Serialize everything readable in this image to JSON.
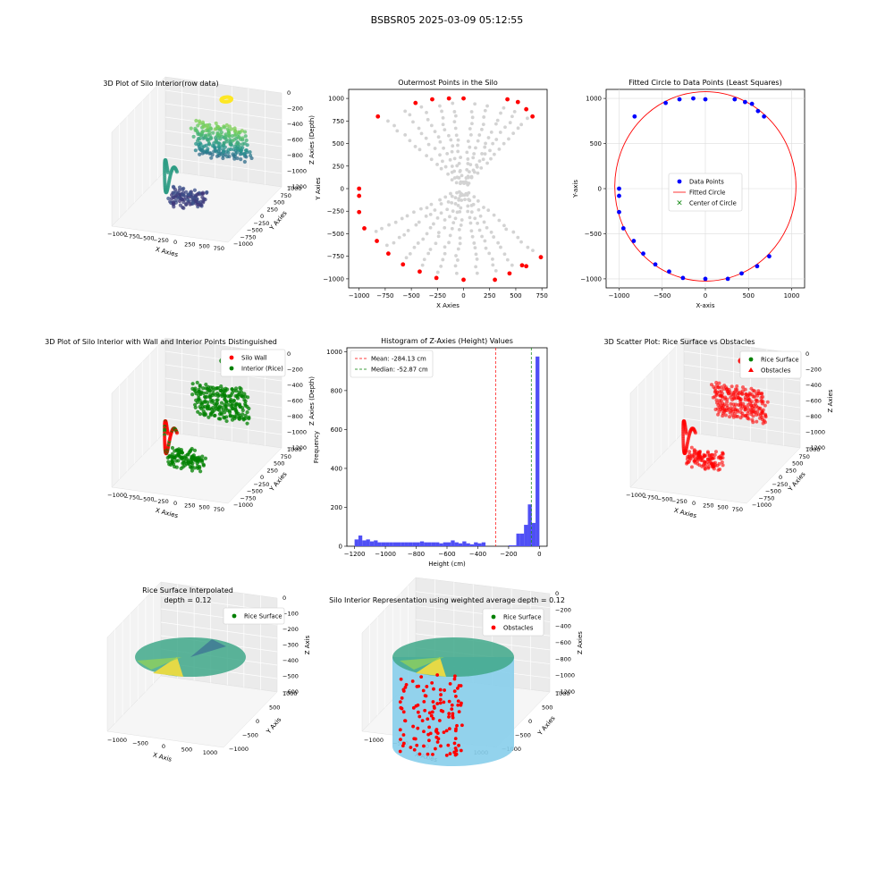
{
  "suptitle": "BSBSR05 2025-03-09 05:12:55",
  "colors": {
    "red": "#ff0000",
    "green": "#008000",
    "blue": "#0000ff",
    "gray": "#d3d3d3",
    "hist_bar": "#4f4ff5",
    "cyl": "#87ceeb",
    "pane": "#f2f2f2"
  },
  "chart_data": [
    {
      "type": "scatter3d",
      "id": "p1",
      "title": "3D Plot of Silo Interior(row data)",
      "xlabel": "X Axies",
      "ylabel": "Y Axies",
      "zlabel": "Z Axies (Depth)",
      "xticks": [
        "−1000",
        "−750",
        "−500",
        "−250",
        "0",
        "250",
        "500",
        "750"
      ],
      "yticks": [
        "−1000",
        "−750",
        "−500",
        "−250",
        "0",
        "250",
        "500",
        "750",
        "1000"
      ],
      "zticks": [
        "−1200",
        "−1000",
        "−800",
        "−600",
        "−400",
        "−200",
        "0"
      ],
      "xlim": [
        -1000,
        750
      ],
      "ylim": [
        -1000,
        1000
      ],
      "zlim": [
        -1200,
        0
      ],
      "colormap": "viridis"
    },
    {
      "type": "scatter",
      "id": "p2",
      "title": "Outermost Points in the Silo",
      "xlabel": "X Axies",
      "ylabel": "Y Axies",
      "xlim": [
        -1100,
        800
      ],
      "ylim": [
        -1100,
        1100
      ],
      "xticks": [
        -1000,
        -750,
        -500,
        -250,
        0,
        250,
        500,
        750
      ],
      "yticks": [
        -1000,
        -750,
        -500,
        -250,
        0,
        250,
        500,
        750,
        1000
      ],
      "series": [
        {
          "name": "Outermost points",
          "color": "red",
          "points": [
            [
              -1000,
              0
            ],
            [
              -1000,
              -80
            ],
            [
              -1000,
              -260
            ],
            [
              -950,
              -440
            ],
            [
              -820,
              800
            ],
            [
              -830,
              -580
            ],
            [
              -720,
              -720
            ],
            [
              -580,
              -840
            ],
            [
              -460,
              950
            ],
            [
              -420,
              -920
            ],
            [
              -300,
              990
            ],
            [
              -260,
              -990
            ],
            [
              -140,
              1000
            ],
            [
              0,
              1000
            ],
            [
              0,
              -1010
            ],
            [
              300,
              -1010
            ],
            [
              420,
              990
            ],
            [
              440,
              -940
            ],
            [
              520,
              960
            ],
            [
              560,
              -850
            ],
            [
              600,
              -860
            ],
            [
              600,
              880
            ],
            [
              660,
              800
            ],
            [
              740,
              -760
            ]
          ]
        }
      ]
    },
    {
      "type": "scatter",
      "id": "p3",
      "title": "Fitted Circle to Data Points (Least Squares)",
      "xlabel": "X-axis",
      "ylabel": "Y-axis",
      "xlim": [
        -1150,
        1150
      ],
      "ylim": [
        -1100,
        1100
      ],
      "xticks": [
        -1000,
        -500,
        0,
        500,
        1000
      ],
      "yticks": [
        -1000,
        -500,
        0,
        500,
        1000
      ],
      "legend": [
        "Data Points",
        "Fitted Circle",
        "Center of Circle"
      ],
      "circle": {
        "cx": 0,
        "cy": 25,
        "r": 1050
      },
      "center": [
        0,
        25
      ],
      "points": [
        [
          -1000,
          0
        ],
        [
          -1000,
          -80
        ],
        [
          -1000,
          -260
        ],
        [
          -950,
          -440
        ],
        [
          -820,
          800
        ],
        [
          -830,
          -580
        ],
        [
          -720,
          -720
        ],
        [
          -580,
          -840
        ],
        [
          -460,
          950
        ],
        [
          -420,
          -920
        ],
        [
          -300,
          990
        ],
        [
          -260,
          -990
        ],
        [
          -140,
          1000
        ],
        [
          0,
          990
        ],
        [
          0,
          -1000
        ],
        [
          260,
          -1000
        ],
        [
          340,
          990
        ],
        [
          420,
          -940
        ],
        [
          460,
          960
        ],
        [
          540,
          940
        ],
        [
          600,
          -860
        ],
        [
          610,
          860
        ],
        [
          680,
          800
        ],
        [
          740,
          -750
        ]
      ]
    },
    {
      "type": "scatter3d",
      "id": "p4",
      "title": "3D Plot of Silo Interior with Wall and Interior Points Distinguished",
      "xlabel": "X Axies",
      "ylabel": "Y Axies",
      "zlabel": "Z Axies (Depth)",
      "xticks": [
        "−1000",
        "−750",
        "−500",
        "−250",
        "0",
        "250",
        "500",
        "750"
      ],
      "yticks": [
        "−1000",
        "−750",
        "−500",
        "−250",
        "0",
        "250",
        "500",
        "750",
        "1000"
      ],
      "zticks": [
        "−1200",
        "−1000",
        "−800",
        "−600",
        "−400",
        "−200",
        "0"
      ],
      "legend": [
        "Silo Wall",
        "Interior (Rice)"
      ]
    },
    {
      "type": "bar",
      "id": "p5",
      "title": "Histogram of Z-Axies (Height) Values",
      "xlabel": "Height (cm)",
      "ylabel": "Frequency",
      "xlim": [
        -1250,
        50
      ],
      "ylim": [
        0,
        1020
      ],
      "xticks": [
        -1200,
        -1000,
        -800,
        -600,
        -400,
        -200,
        0
      ],
      "yticks": [
        0,
        200,
        400,
        600,
        800,
        1000
      ],
      "bins": [
        [
          -1200,
          35
        ],
        [
          -1175,
          55
        ],
        [
          -1150,
          30
        ],
        [
          -1125,
          35
        ],
        [
          -1100,
          25
        ],
        [
          -1075,
          30
        ],
        [
          -1050,
          20
        ],
        [
          -1025,
          20
        ],
        [
          -1000,
          20
        ],
        [
          -975,
          20
        ],
        [
          -950,
          20
        ],
        [
          -925,
          20
        ],
        [
          -900,
          20
        ],
        [
          -875,
          20
        ],
        [
          -850,
          20
        ],
        [
          -825,
          20
        ],
        [
          -800,
          20
        ],
        [
          -775,
          25
        ],
        [
          -750,
          20
        ],
        [
          -725,
          20
        ],
        [
          -700,
          20
        ],
        [
          -675,
          20
        ],
        [
          -650,
          15
        ],
        [
          -625,
          20
        ],
        [
          -600,
          20
        ],
        [
          -575,
          30
        ],
        [
          -550,
          20
        ],
        [
          -525,
          15
        ],
        [
          -500,
          25
        ],
        [
          -475,
          15
        ],
        [
          -450,
          10
        ],
        [
          -425,
          20
        ],
        [
          -400,
          15
        ],
        [
          -375,
          20
        ],
        [
          -350,
          0
        ],
        [
          -325,
          0
        ],
        [
          -300,
          0
        ],
        [
          -275,
          0
        ],
        [
          -250,
          0
        ],
        [
          -225,
          0
        ],
        [
          -200,
          5
        ],
        [
          -175,
          5
        ],
        [
          -150,
          65
        ],
        [
          -125,
          65
        ],
        [
          -100,
          110
        ],
        [
          -75,
          215
        ],
        [
          -50,
          120
        ],
        [
          -25,
          975
        ]
      ],
      "binwidth": 25,
      "mean": -284.13,
      "median": -52.87,
      "legend": [
        "Mean: -284.13 cm",
        "Median: -52.87 cm"
      ]
    },
    {
      "type": "scatter3d",
      "id": "p6",
      "title": "3D Scatter Plot: Rice Surface vs Obstacles",
      "xlabel": "X Axies",
      "ylabel": "Y Axies",
      "zlabel": "Z Axies",
      "xticks": [
        "−1000",
        "−750",
        "−500",
        "−250",
        "0",
        "250",
        "500",
        "750"
      ],
      "yticks": [
        "−1000",
        "−750",
        "−500",
        "−250",
        "0",
        "250",
        "500",
        "750",
        "1000"
      ],
      "zticks": [
        "−1200",
        "−1000",
        "−800",
        "−600",
        "−400",
        "−200",
        "0"
      ],
      "legend": [
        "Rice Surface",
        "Obstacles"
      ]
    },
    {
      "type": "surface3d",
      "id": "p7",
      "title": "Rice Surface Interpolated\ndepth = 0.12",
      "title_lines": [
        "Rice Surface Interpolated",
        "depth = 0.12"
      ],
      "xlabel": "X Axis",
      "ylabel": "Y Axis",
      "zlabel": "Z Axis",
      "xticks": [
        "−1000",
        "−500",
        "0",
        "500",
        "1000"
      ],
      "yticks": [
        "−1000",
        "−500",
        "0",
        "500",
        "1000"
      ],
      "zticks": [
        "−600",
        "−500",
        "−400",
        "−300",
        "−200",
        "−100",
        "0"
      ],
      "legend": [
        "Rice Surface"
      ]
    },
    {
      "type": "surface3d",
      "id": "p8",
      "title": "Silo Interior Representation using weighted average depth = 0.12",
      "xlabel": "X Axies",
      "ylabel": "Y Axies",
      "zlabel": "Z Axies",
      "xticks": [
        "−1000",
        "−500",
        "0",
        "500",
        "1000"
      ],
      "yticks": [
        "−1000",
        "−500",
        "0",
        "500",
        "1000"
      ],
      "zticks": [
        "−1200",
        "−1000",
        "−800",
        "−600",
        "−400",
        "−200",
        "0"
      ],
      "legend": [
        "Rice Surface",
        "Obstacles"
      ]
    }
  ]
}
